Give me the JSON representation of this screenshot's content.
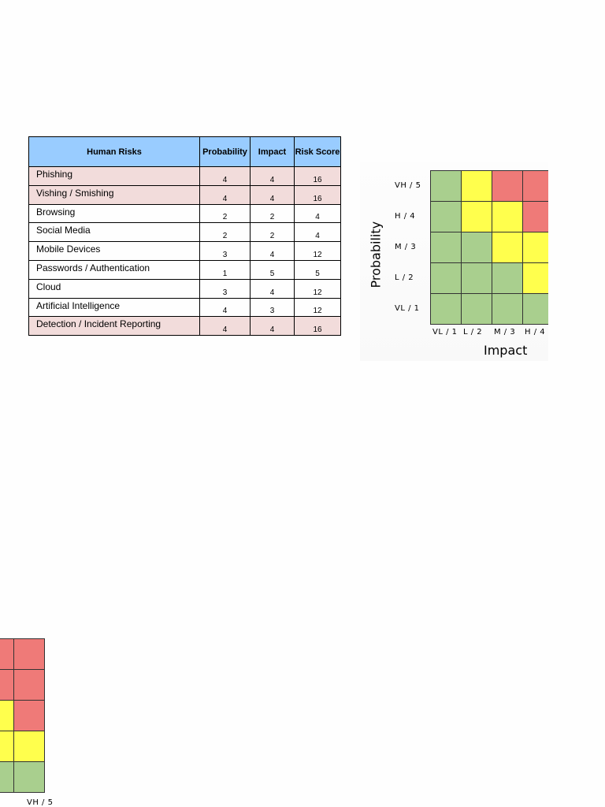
{
  "table": {
    "headers": {
      "name": "Human Risks",
      "probability": "Probability",
      "impact": "Impact",
      "score": "Risk Score"
    },
    "rows": [
      {
        "name": "Phishing",
        "probability": "4",
        "impact": "4",
        "score": "16",
        "highlight": true
      },
      {
        "name": "Vishing / Smishing",
        "probability": "4",
        "impact": "4",
        "score": "16",
        "highlight": true
      },
      {
        "name": "Browsing",
        "probability": "2",
        "impact": "2",
        "score": "4",
        "highlight": false
      },
      {
        "name": "Social Media",
        "probability": "2",
        "impact": "2",
        "score": "4",
        "highlight": false
      },
      {
        "name": "Mobile Devices",
        "probability": "3",
        "impact": "4",
        "score": "12",
        "highlight": false
      },
      {
        "name": "Passwords / Authentication",
        "probability": "1",
        "impact": "5",
        "score": "5",
        "highlight": false
      },
      {
        "name": "Cloud",
        "probability": "3",
        "impact": "4",
        "score": "12",
        "highlight": false
      },
      {
        "name": "Artificial Intelligence",
        "probability": "4",
        "impact": "3",
        "score": "12",
        "highlight": false
      },
      {
        "name": "Detection / Incident Reporting",
        "probability": "4",
        "impact": "4",
        "score": "16",
        "highlight": true
      }
    ]
  },
  "heatmap": {
    "y_title": "Probability",
    "x_title": "Impact",
    "y_labels": [
      "VH / 5",
      "H / 4",
      "M / 3",
      "L / 2",
      "VL / 1"
    ],
    "x_labels": [
      "VL / 1",
      "L / 2",
      "M / 3",
      "H / 4"
    ],
    "colors": {
      "green": "#a9cf8e",
      "yellow": "#ffff4d",
      "red": "#ef7a78"
    },
    "cells": [
      [
        "green",
        "yellow",
        "red",
        "red",
        "red"
      ],
      [
        "green",
        "yellow",
        "yellow",
        "red",
        "red"
      ],
      [
        "green",
        "green",
        "yellow",
        "yellow",
        "red"
      ],
      [
        "green",
        "green",
        "green",
        "yellow",
        "yellow"
      ],
      [
        "green",
        "green",
        "green",
        "green",
        "green"
      ]
    ]
  },
  "fragment": {
    "cells": [
      [
        "red",
        "red"
      ],
      [
        "red",
        "red"
      ],
      [
        "yellow",
        "red"
      ],
      [
        "yellow",
        "yellow"
      ],
      [
        "green",
        "green"
      ]
    ],
    "x_label": "VH / 5"
  }
}
